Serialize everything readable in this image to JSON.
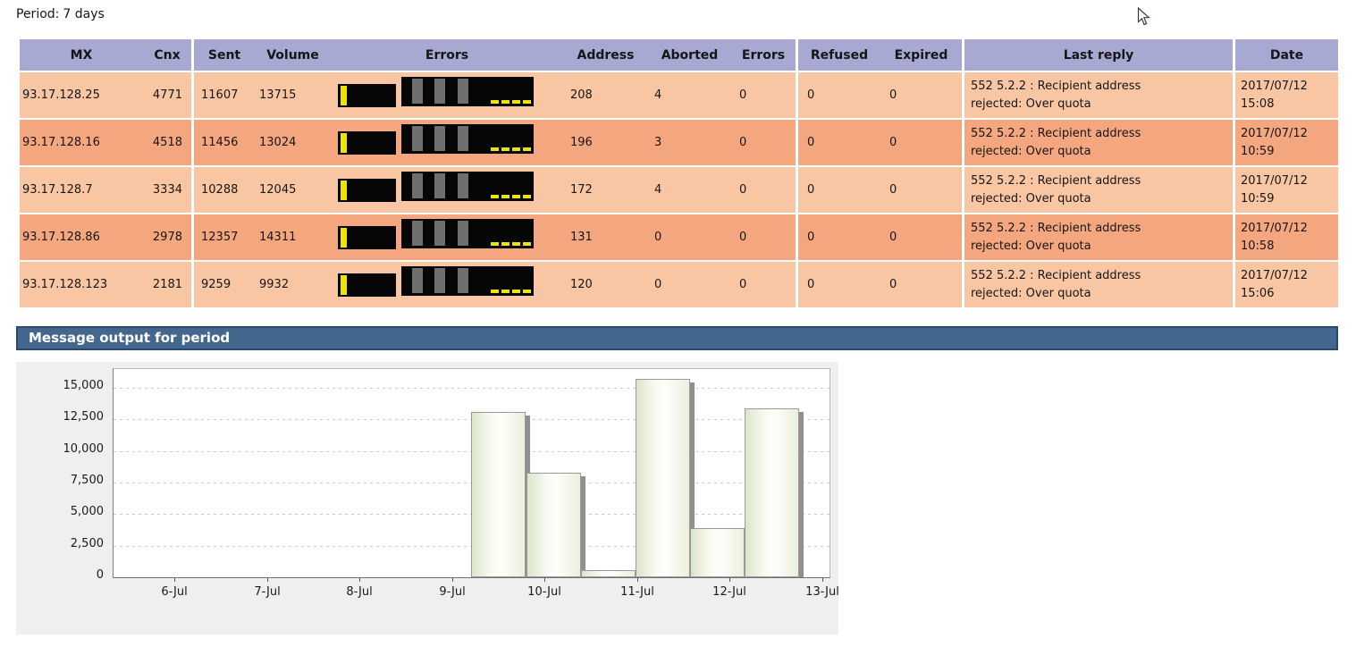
{
  "page": {
    "period_label": "Period:",
    "period_value": "7 days"
  },
  "table": {
    "headers": [
      "MX",
      "Cnx",
      "Sent",
      "Volume",
      "Errors",
      "Address",
      "Aborted",
      "Errors",
      "Refused",
      "Expired",
      "Last reply",
      "Date"
    ],
    "rows": [
      {
        "mx": "93.17.128.25",
        "cnx": "4771",
        "sent": "11607",
        "volume": "13715",
        "address": "208",
        "aborted": "4",
        "errors": "0",
        "refused": "0",
        "expired": "0",
        "last_reply": [
          "552 5.2.2 : Recipient address",
          "rejected: Over quota"
        ],
        "date": "2017/07/12",
        "time": "15:08"
      },
      {
        "mx": "93.17.128.16",
        "cnx": "4518",
        "sent": "11456",
        "volume": "13024",
        "address": "196",
        "aborted": "3",
        "errors": "0",
        "refused": "0",
        "expired": "0",
        "last_reply": [
          "552 5.2.2 : Recipient address",
          "rejected: Over quota"
        ],
        "date": "2017/07/12",
        "time": "10:59"
      },
      {
        "mx": "93.17.128.7",
        "cnx": "3334",
        "sent": "10288",
        "volume": "12045",
        "address": "172",
        "aborted": "4",
        "errors": "0",
        "refused": "0",
        "expired": "0",
        "last_reply": [
          "552 5.2.2 : Recipient address",
          "rejected: Over quota"
        ],
        "date": "2017/07/12",
        "time": "10:59"
      },
      {
        "mx": "93.17.128.86",
        "cnx": "2978",
        "sent": "12357",
        "volume": "14311",
        "address": "131",
        "aborted": "0",
        "errors": "0",
        "refused": "0",
        "expired": "0",
        "last_reply": [
          "552 5.2.2 : Recipient address",
          "rejected: Over quota"
        ],
        "date": "2017/07/12",
        "time": "10:58"
      },
      {
        "mx": "93.17.128.123",
        "cnx": "2181",
        "sent": "9259",
        "volume": "9932",
        "address": "120",
        "aborted": "0",
        "errors": "0",
        "refused": "0",
        "expired": "0",
        "last_reply": [
          "552 5.2.2 : Recipient address",
          "rejected: Over quota"
        ],
        "date": "2017/07/12",
        "time": "15:06"
      }
    ],
    "row_icons": [
      "volume-gauge",
      "errors-histogram"
    ]
  },
  "section": {
    "title": "Message output for period"
  },
  "chart_data": {
    "type": "bar",
    "title": "Message output for period",
    "xlabel": "",
    "ylabel": "",
    "x_unit": "day of July 2017",
    "xlim": [
      5.33,
      13.07
    ],
    "ylim": [
      0,
      16500
    ],
    "grid": "horizontal dashed",
    "legend": "none",
    "x_ticks": [
      {
        "day": 6,
        "label": "6-Jul"
      },
      {
        "day": 7,
        "label": "7-Jul"
      },
      {
        "day": 8,
        "label": "8-Jul"
      },
      {
        "day": 9,
        "label": "9-Jul"
      },
      {
        "day": 10,
        "label": "10-Jul"
      },
      {
        "day": 11,
        "label": "11-Jul"
      },
      {
        "day": 12,
        "label": "12-Jul"
      },
      {
        "day": 13,
        "label": "13-Jul"
      }
    ],
    "y_ticks": [
      {
        "value": 0,
        "label": "0"
      },
      {
        "value": 2500,
        "label": "2,500"
      },
      {
        "value": 5000,
        "label": "5,000"
      },
      {
        "value": 7500,
        "label": "7,500"
      },
      {
        "value": 10000,
        "label": "10,000"
      },
      {
        "value": 12500,
        "label": "12,500"
      },
      {
        "value": 15000,
        "label": "15,000"
      }
    ],
    "bar_width_days": 0.59,
    "bars": [
      {
        "day_start": 9.2,
        "value": 13100
      },
      {
        "day_start": 9.79,
        "value": 8300
      },
      {
        "day_start": 10.38,
        "value": 570
      },
      {
        "day_start": 10.97,
        "value": 15700
      },
      {
        "day_start": 11.56,
        "value": 3900
      },
      {
        "day_start": 12.15,
        "value": 13400
      }
    ]
  },
  "colors": {
    "header_bg": "#a8a9d2",
    "row_light": "#f9c6a3",
    "row_dark": "#f4a67e",
    "banner_bg": "#44678e",
    "banner_border": "#2a4a6c",
    "chart_bg": "#efefef",
    "bar_border": "#999999",
    "bar_shadow": "#909090",
    "grid_line": "#c9c9c9",
    "mini_black": "#060606",
    "mini_yellow": "#ede400",
    "mini_gray": "#6f6f6f"
  }
}
